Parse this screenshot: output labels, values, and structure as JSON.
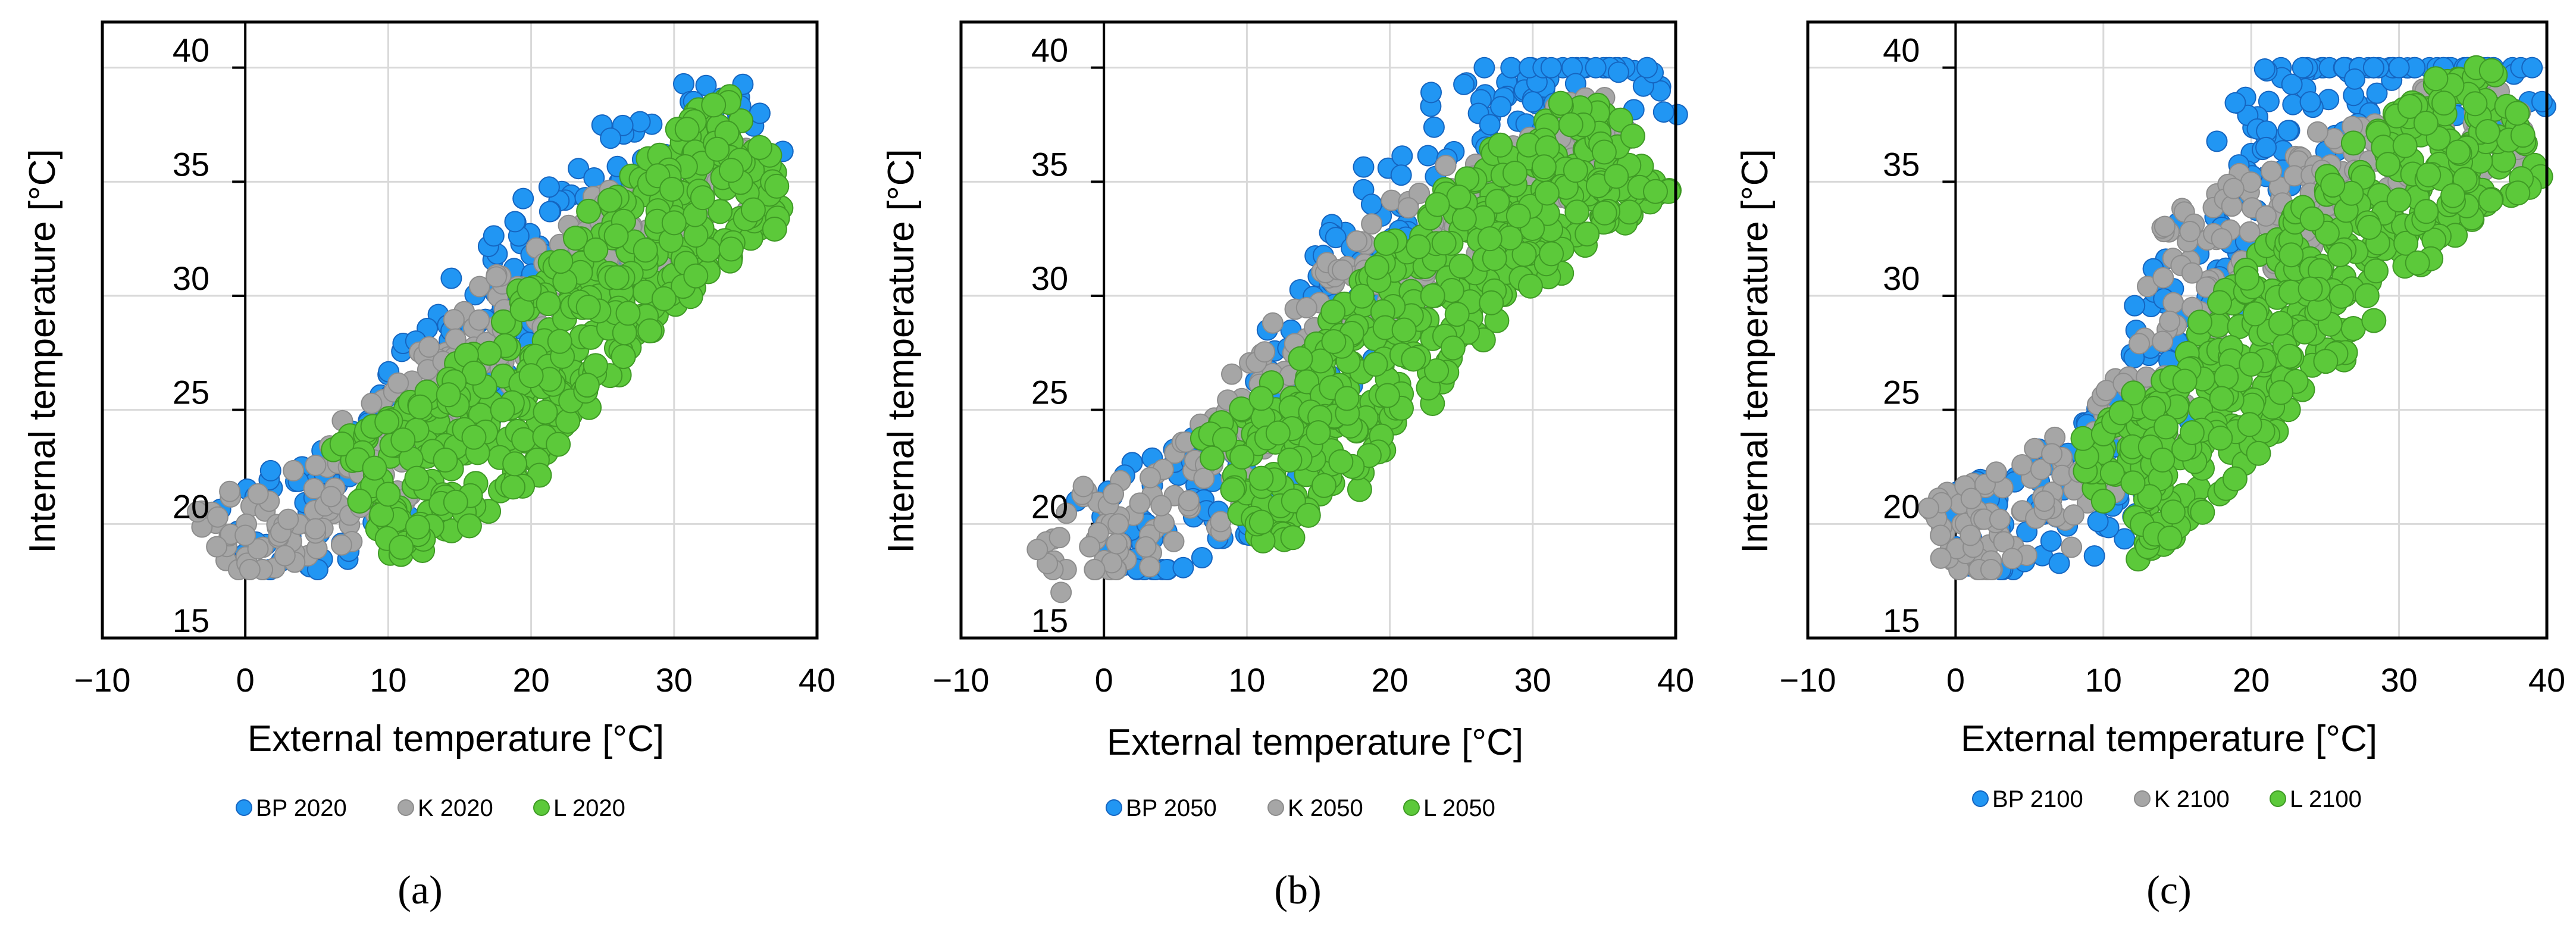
{
  "figure": {
    "panels": [
      {
        "label": "(a)",
        "letter": "a"
      },
      {
        "label": "(b)",
        "letter": "b"
      },
      {
        "label": "(c)",
        "letter": "c"
      }
    ]
  },
  "colors": {
    "bp": "#2196f3",
    "bp_edge": "#1565c0",
    "k": "#a6a6a6",
    "k_edge": "#8c8c8c",
    "l": "#5cc93a",
    "l_edge": "#3f9a25",
    "grid": "#d9d9d9",
    "frame": "#000000"
  },
  "chart_data": [
    {
      "type": "scatter",
      "title": "",
      "xlabel": "External temperature [°C]",
      "ylabel": "Internal temperature [°C]",
      "xlim": [
        -10,
        40
      ],
      "ylim": [
        15,
        42
      ],
      "xticks": [
        -10,
        0,
        10,
        20,
        30,
        40
      ],
      "yticks": [
        15,
        20,
        25,
        30,
        35,
        40
      ],
      "grid": true,
      "legend_position": "bottom",
      "series": [
        {
          "name": "BP 2020",
          "key": "bp",
          "x": [
            0,
            3,
            6,
            9,
            12,
            15,
            18,
            21,
            24,
            27,
            30,
            33,
            36
          ],
          "y": [
            18.7,
            19.8,
            20.8,
            22.3,
            24.5,
            27.0,
            29.5,
            31.8,
            33.5,
            35.0,
            36.0,
            37.0,
            38.0
          ]
        },
        {
          "name": "K 2020",
          "key": "k",
          "x": [
            -2,
            0,
            3,
            6,
            9,
            12,
            15,
            18,
            21,
            24,
            27,
            30,
            33,
            36
          ],
          "y": [
            19.0,
            19.5,
            20.2,
            21.2,
            22.8,
            24.5,
            26.5,
            28.5,
            30.0,
            31.5,
            33.0,
            34.0,
            35.0,
            36.0
          ]
        },
        {
          "name": "L 2020",
          "key": "l",
          "x": [
            8,
            10,
            12,
            14,
            16,
            18,
            20,
            22,
            24,
            26,
            28,
            30,
            32,
            34,
            36
          ],
          "y": [
            21.0,
            21.3,
            22.0,
            22.8,
            23.8,
            25.0,
            26.5,
            28.0,
            29.5,
            30.8,
            32.0,
            33.2,
            34.3,
            35.5,
            36.5
          ]
        }
      ]
    },
    {
      "type": "scatter",
      "title": "",
      "xlabel": "External temperature [°C]",
      "ylabel": "Internal temperature [°C]",
      "xlim": [
        -10,
        40
      ],
      "ylim": [
        15,
        42
      ],
      "xticks": [
        -10,
        0,
        10,
        20,
        30,
        40
      ],
      "yticks": [
        15,
        20,
        25,
        30,
        35,
        40
      ],
      "grid": true,
      "legend_position": "bottom",
      "series": [
        {
          "name": "BP 2050",
          "key": "bp",
          "x": [
            0,
            3,
            6,
            9,
            12,
            15,
            18,
            21,
            24,
            27,
            30,
            33,
            36,
            38
          ],
          "y": [
            19.0,
            20.0,
            20.8,
            22.0,
            24.5,
            28.0,
            31.5,
            34.0,
            36.0,
            37.5,
            38.5,
            39.3,
            39.8,
            40.0
          ]
        },
        {
          "name": "K 2050",
          "key": "k",
          "x": [
            -3,
            -1,
            1,
            4,
            7,
            10,
            13,
            16,
            19,
            22,
            25,
            28,
            31,
            34,
            37
          ],
          "y": [
            17.0,
            19.0,
            20.0,
            20.8,
            22.0,
            24.0,
            26.5,
            29.0,
            30.5,
            32.0,
            33.5,
            34.5,
            35.5,
            36.5,
            37.0
          ]
        },
        {
          "name": "L 2050",
          "key": "l",
          "x": [
            9,
            11,
            13,
            15,
            17,
            19,
            21,
            23,
            25,
            27,
            29,
            31,
            33,
            35,
            37
          ],
          "y": [
            21.5,
            22.0,
            22.8,
            24.0,
            25.5,
            27.0,
            28.5,
            30.0,
            31.3,
            32.5,
            33.5,
            34.5,
            35.5,
            36.3,
            37.0
          ]
        }
      ]
    },
    {
      "type": "scatter",
      "title": "",
      "xlabel": "External temperature [°C]",
      "ylabel": "Internal temperature [°C]",
      "xlim": [
        -10,
        40
      ],
      "ylim": [
        15,
        42
      ],
      "xticks": [
        -10,
        0,
        10,
        20,
        30,
        40
      ],
      "yticks": [
        15,
        20,
        25,
        30,
        35,
        40
      ],
      "grid": true,
      "legend_position": "bottom",
      "series": [
        {
          "name": "BP 2100",
          "key": "bp",
          "x": [
            0,
            3,
            6,
            9,
            12,
            15,
            18,
            21,
            24,
            27,
            30,
            33,
            36,
            39
          ],
          "y": [
            19.0,
            19.8,
            20.5,
            21.5,
            23.5,
            28.0,
            33.0,
            36.5,
            38.5,
            39.5,
            40.0,
            40.0,
            40.0,
            40.0
          ]
        },
        {
          "name": "K 2100",
          "key": "k",
          "x": [
            -1,
            1,
            3,
            6,
            9,
            12,
            14,
            16,
            18,
            21,
            24,
            27,
            30,
            33,
            36,
            38
          ],
          "y": [
            18.5,
            19.5,
            20.2,
            21.0,
            22.5,
            25.0,
            28.0,
            31.0,
            32.5,
            33.5,
            34.5,
            35.5,
            36.5,
            37.2,
            37.8,
            38.0
          ]
        },
        {
          "name": "L 2100",
          "key": "l",
          "x": [
            10,
            12,
            14,
            16,
            18,
            20,
            22,
            24,
            26,
            28,
            30,
            32,
            34,
            36,
            38
          ],
          "y": [
            21.0,
            21.8,
            22.8,
            24.0,
            25.5,
            27.0,
            28.8,
            30.3,
            31.8,
            33.0,
            34.2,
            35.3,
            36.3,
            37.2,
            38.0
          ]
        }
      ]
    }
  ]
}
